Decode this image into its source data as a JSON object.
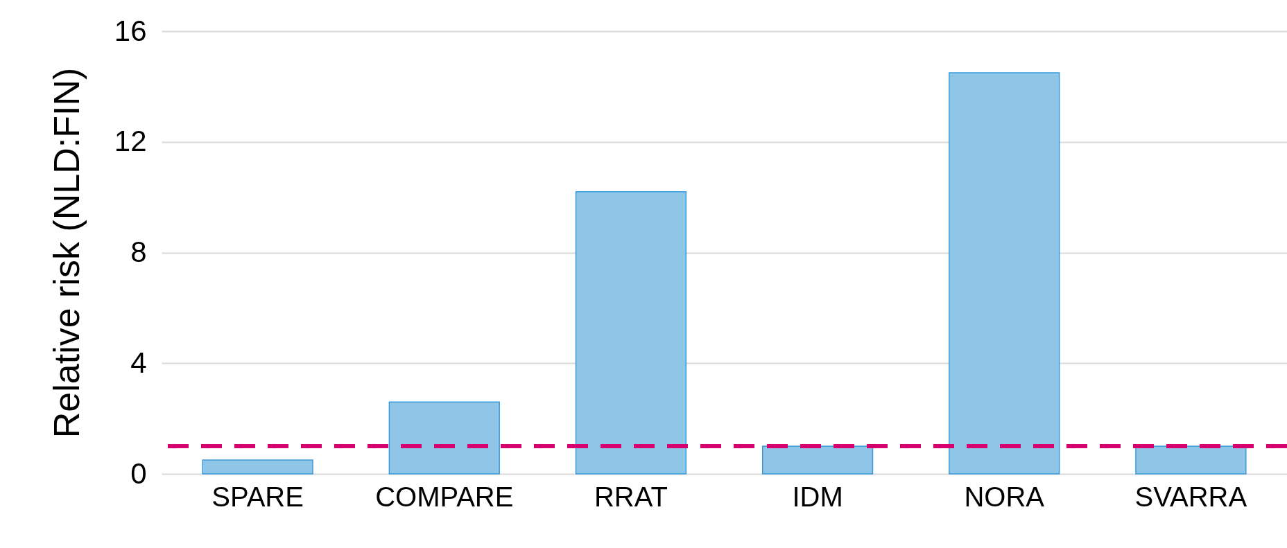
{
  "chart_data": {
    "type": "bar",
    "ylabel": "Relative risk (NLD:FIN)",
    "categories": [
      "SPARE",
      "COMPARE",
      "RRAT",
      "IDM",
      "NORA",
      "SVARRA"
    ],
    "values": [
      0.5,
      2.6,
      10.2,
      1.0,
      14.5,
      1.0
    ],
    "color": "#8fc6e7",
    "ylim": [
      0,
      16
    ],
    "yticks": [
      0,
      4,
      8,
      12,
      16
    ],
    "grid": "y",
    "ref_lines": [
      {
        "axis": "y",
        "value": 1,
        "color": "#d6006f",
        "line_style": "dashed"
      }
    ]
  }
}
